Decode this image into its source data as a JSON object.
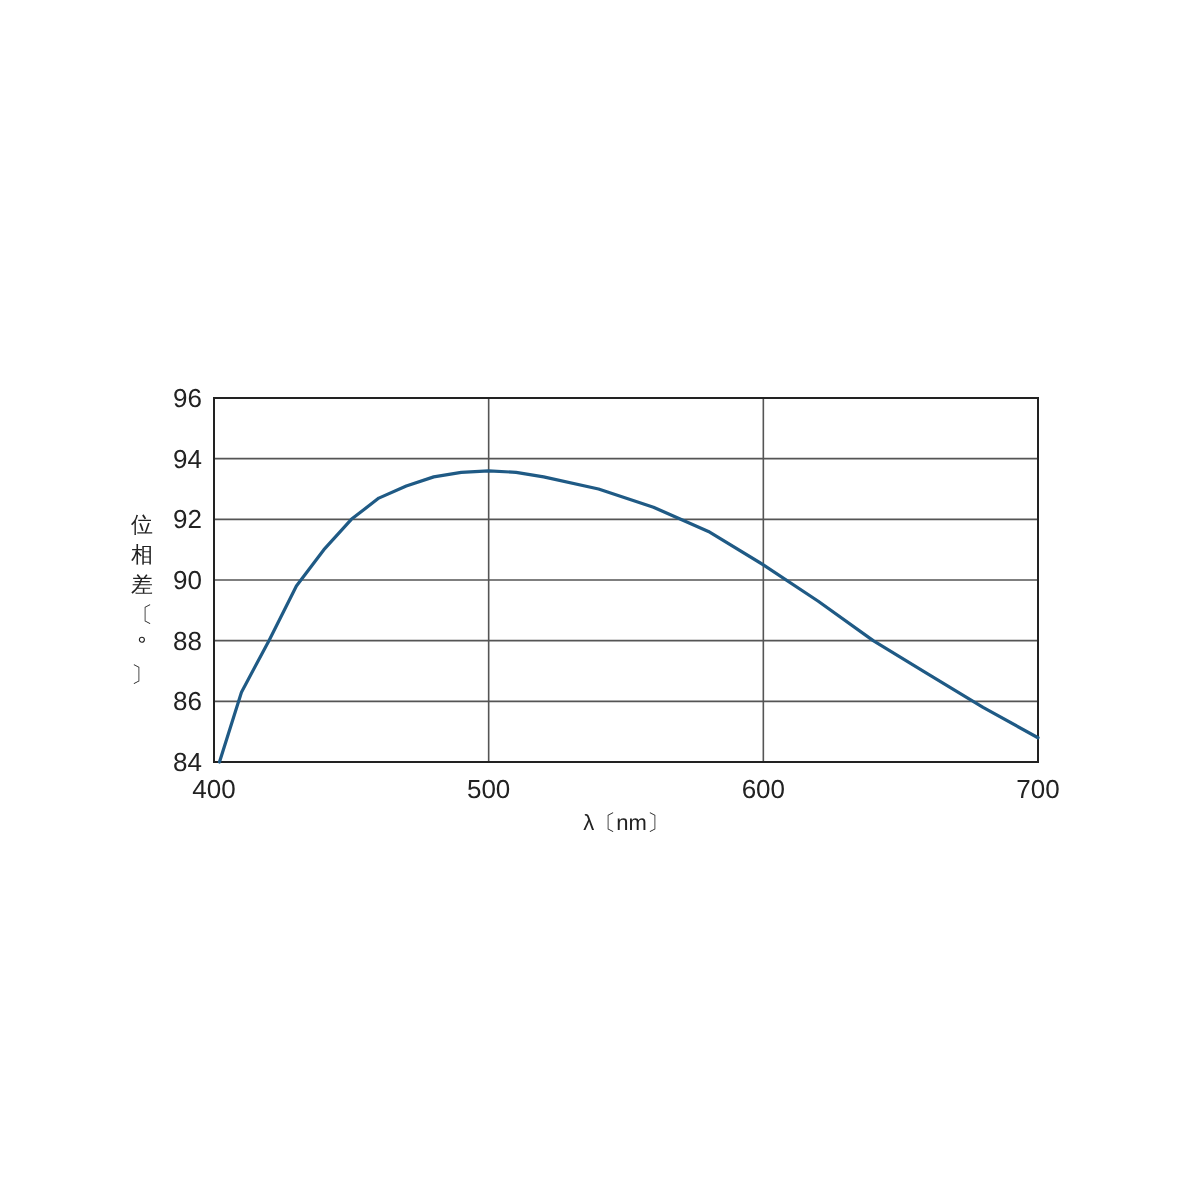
{
  "chart_data": {
    "type": "line",
    "xlabel": "λ〔nm〕",
    "ylabel": "位相差〔°〕",
    "x": [
      402,
      410,
      420,
      430,
      440,
      450,
      460,
      470,
      480,
      490,
      500,
      510,
      520,
      540,
      560,
      580,
      600,
      620,
      640,
      660,
      680,
      700
    ],
    "series": [
      {
        "color": "#1f5a85",
        "values": [
          84,
          86.3,
          88,
          89.8,
          91,
          92,
          92.7,
          93.1,
          93.4,
          93.55,
          93.6,
          93.55,
          93.4,
          93,
          92.4,
          91.6,
          90.5,
          89.3,
          88,
          86.9,
          85.8,
          84.8
        ]
      }
    ],
    "xlim": [
      400,
      700
    ],
    "xticks": [
      400,
      500,
      600,
      700
    ],
    "ylim": [
      84,
      96
    ],
    "yticks": [
      84,
      86,
      88,
      90,
      92,
      94,
      96
    ],
    "grid": true,
    "marker": "none",
    "line_style": "solid"
  }
}
